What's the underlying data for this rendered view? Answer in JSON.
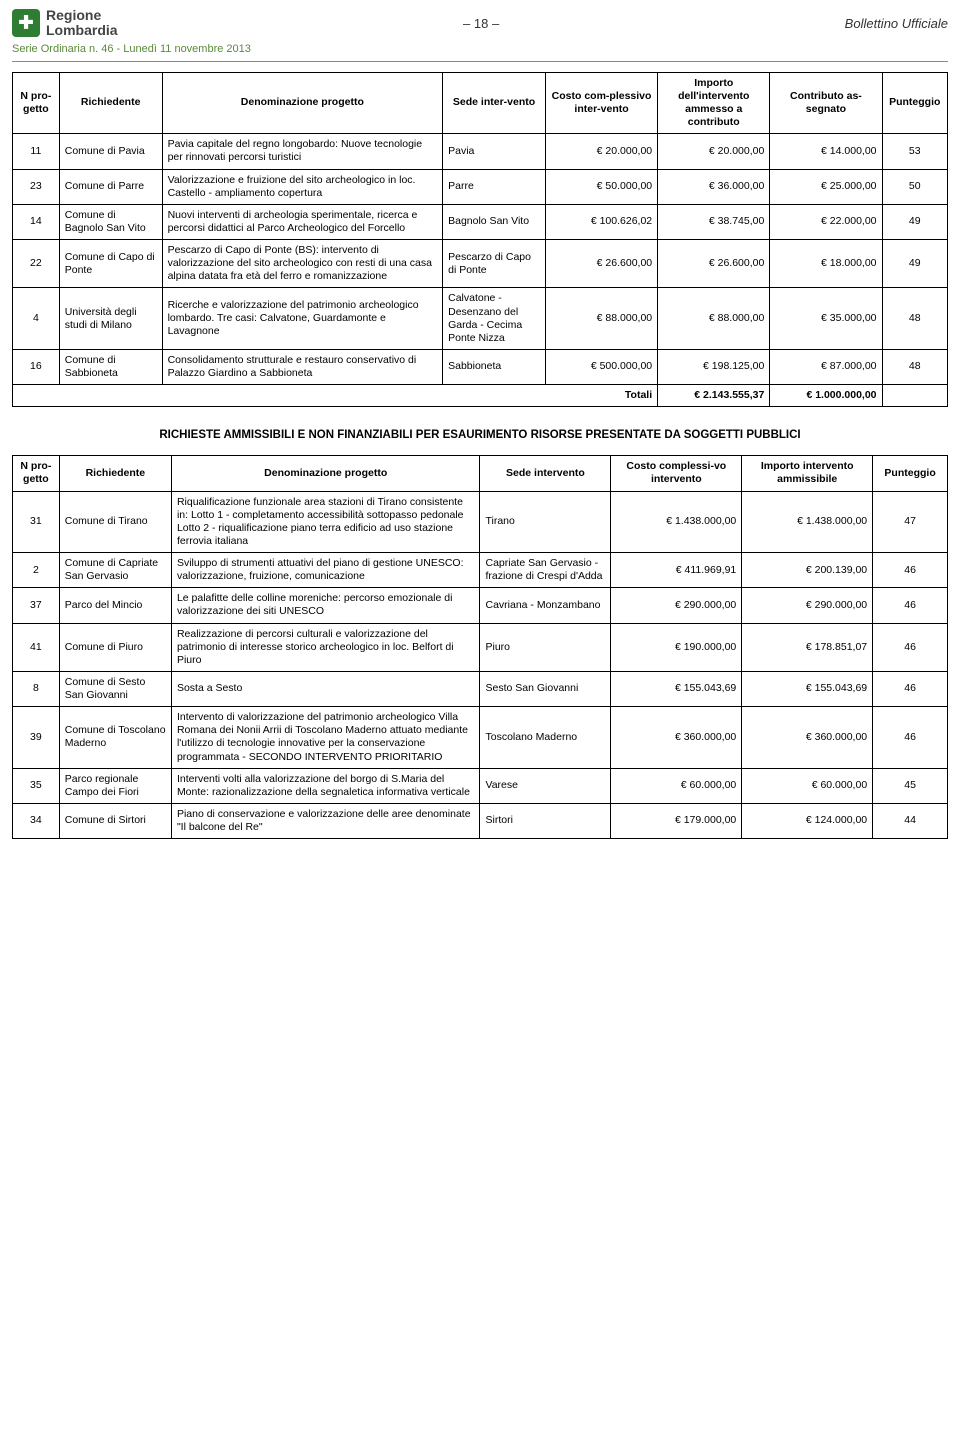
{
  "header": {
    "logo_line1": "Regione",
    "logo_line2": "Lombardia",
    "page_num": "– 18 –",
    "bollettino": "Bollettino Ufficiale",
    "serie": "Serie Ordinaria n. 46 - Lunedì 11 novembre 2013"
  },
  "table1": {
    "columns": {
      "n": "N pro-getto",
      "richiedente": "Richiedente",
      "denominazione": "Denominazione progetto",
      "sede": "Sede inter-vento",
      "costo": "Costo com-plessivo inter-vento",
      "importo": "Importo dell'intervento ammesso a contributo",
      "contributo": "Contributo as-segnato",
      "punteggio": "Punteggio"
    },
    "rows": [
      {
        "n": "11",
        "rich": "Comune di Pavia",
        "den": "Pavia capitale del regno longobardo: Nuove tecnologie per rinnovati percorsi turistici",
        "sede": "Pavia",
        "costo": "€ 20.000,00",
        "imp": "€ 20.000,00",
        "contr": "€ 14.000,00",
        "punt": "53"
      },
      {
        "n": "23",
        "rich": "Comune di Parre",
        "den": "Valorizzazione e fruizione del sito archeologico in loc. Castello - ampliamento copertura",
        "sede": "Parre",
        "costo": "€ 50.000,00",
        "imp": "€ 36.000,00",
        "contr": "€ 25.000,00",
        "punt": "50"
      },
      {
        "n": "14",
        "rich": "Comune di Bagnolo San Vito",
        "den": "Nuovi interventi di archeologia sperimentale, ricerca e percorsi didattici al Parco Archeologico del Forcello",
        "sede": "Bagnolo San Vito",
        "costo": "€ 100.626,02",
        "imp": "€ 38.745,00",
        "contr": "€ 22.000,00",
        "punt": "49"
      },
      {
        "n": "22",
        "rich": "Comune di Capo di Ponte",
        "den": "Pescarzo di Capo di Ponte (BS): intervento di valorizzazione del sito archeologico con resti di una casa alpina datata fra età del ferro e romanizzazione",
        "sede": "Pescarzo di Capo di Ponte",
        "costo": "€ 26.600,00",
        "imp": "€ 26.600,00",
        "contr": "€ 18.000,00",
        "punt": "49"
      },
      {
        "n": "4",
        "rich": "Università degli studi di Milano",
        "den": "Ricerche e valorizzazione del patrimonio archeologico lombardo. Tre casi: Calvatone, Guardamonte e Lavagnone",
        "sede": "Calvatone - Desenzano del Garda - Cecima Ponte Nizza",
        "costo": "€ 88.000,00",
        "imp": "€ 88.000,00",
        "contr": "€ 35.000,00",
        "punt": "48"
      },
      {
        "n": "16",
        "rich": "Comune di Sabbioneta",
        "den": "Consolidamento strutturale e restauro conservativo di Palazzo Giardino a Sabbioneta",
        "sede": "Sabbioneta",
        "costo": "€ 500.000,00",
        "imp": "€ 198.125,00",
        "contr": "€ 87.000,00",
        "punt": "48"
      }
    ],
    "totali_label": "Totali",
    "totali_imp": "€ 2.143.555,37",
    "totali_contr": "€ 1.000.000,00"
  },
  "section2_title": "RICHIESTE AMMISSIBILI E NON FINANZIABILI PER ESAURIMENTO RISORSE PRESENTATE DA SOGGETTI PUBBLICI",
  "table2": {
    "columns": {
      "n": "N pro-getto",
      "richiedente": "Richiedente",
      "denominazione": "Denominazione progetto",
      "sede": "Sede intervento",
      "costo": "Costo complessi-vo intervento",
      "importo": "Importo intervento ammissibile",
      "punteggio": "Punteggio"
    },
    "rows": [
      {
        "n": "31",
        "rich": "Comune di Tirano",
        "den": "Riqualificazione funzionale area stazioni di Tirano consistente in: Lotto 1 - completamento accessibilità sottopasso pedonale Lotto 2 - riqualificazione piano terra edificio ad uso stazione ferrovia italiana",
        "sede": "Tirano",
        "costo": "€ 1.438.000,00",
        "imp": "€ 1.438.000,00",
        "punt": "47"
      },
      {
        "n": "2",
        "rich": "Comune di Capriate San Gervasio",
        "den": "Sviluppo di strumenti attuativi del piano di gestione UNESCO: valorizzazione, fruizione, comunicazione",
        "sede": "Capriate San Gervasio - frazione di Crespi d'Adda",
        "costo": "€ 411.969,91",
        "imp": "€ 200.139,00",
        "punt": "46"
      },
      {
        "n": "37",
        "rich": "Parco del Mincio",
        "den": "Le palafitte delle colline moreniche: percorso emozionale di valorizzazione dei siti UNESCO",
        "sede": "Cavriana - Monzambano",
        "costo": "€ 290.000,00",
        "imp": "€ 290.000,00",
        "punt": "46"
      },
      {
        "n": "41",
        "rich": "Comune di Piuro",
        "den": "Realizzazione di percorsi culturali e valorizzazione del patrimonio di interesse storico archeologico in loc. Belfort di Piuro",
        "sede": "Piuro",
        "costo": "€ 190.000,00",
        "imp": "€ 178.851,07",
        "punt": "46"
      },
      {
        "n": "8",
        "rich": "Comune di Sesto San Giovanni",
        "den": "Sosta a Sesto",
        "sede": "Sesto San Giovanni",
        "costo": "€ 155.043,69",
        "imp": "€ 155.043,69",
        "punt": "46"
      },
      {
        "n": "39",
        "rich": "Comune di Toscolano Maderno",
        "den": "Intervento di valorizzazione del patrimonio archeologico Villa Romana dei Nonii Arrii di Toscolano Maderno attuato mediante l'utilizzo di tecnologie innovative per la conservazione programmata - SECONDO INTERVENTO PRIORITARIO",
        "sede": "Toscolano Maderno",
        "costo": "€ 360.000,00",
        "imp": "€ 360.000,00",
        "punt": "46"
      },
      {
        "n": "35",
        "rich": "Parco regionale Campo dei Fiori",
        "den": "Interventi volti alla valorizzazione del borgo di S.Maria del Monte: razionalizzazione della segnaletica informativa verticale",
        "sede": "Varese",
        "costo": "€ 60.000,00",
        "imp": "€ 60.000,00",
        "punt": "45"
      },
      {
        "n": "34",
        "rich": "Comune di Sirtori",
        "den": "Piano di conservazione e valorizzazione delle aree denominate \"Il balcone del Re\"",
        "sede": "Sirtori",
        "costo": "€ 179.000,00",
        "imp": "€ 124.000,00",
        "punt": "44"
      }
    ]
  }
}
